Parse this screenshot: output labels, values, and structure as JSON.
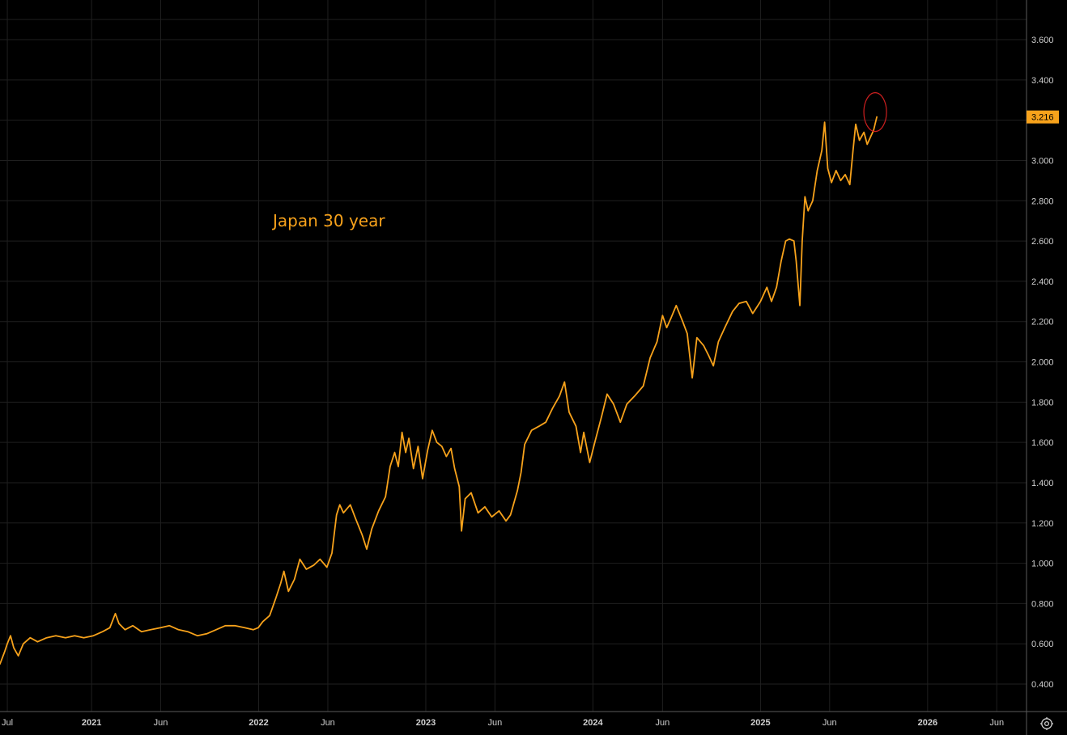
{
  "chart_data": {
    "type": "line",
    "title": "",
    "annotation": "Japan 30 year",
    "xlabel": "",
    "ylabel": "",
    "x_axis_labels": [
      "Jul",
      "2021",
      "Jun",
      "2022",
      "Jun",
      "2023",
      "Jun",
      "2024",
      "Jun",
      "2025",
      "Jun",
      "2026",
      "Jun"
    ],
    "y_ticks": [
      "0.400",
      "0.600",
      "0.800",
      "1.000",
      "1.200",
      "1.400",
      "1.600",
      "1.800",
      "2.000",
      "2.200",
      "2.400",
      "2.600",
      "2.800",
      "3.000",
      "3.200",
      "3.400",
      "3.600"
    ],
    "ylim": [
      0.3,
      3.7
    ],
    "xlim": [
      "2020-06-15",
      "2026-08-05"
    ],
    "grid": true,
    "last_value": "3.216",
    "series": [
      {
        "name": "",
        "color": "#f7a21b",
        "points": [
          [
            "2020-06-15",
            0.5
          ],
          [
            "2020-06-25",
            0.56
          ],
          [
            "2020-07-01",
            0.6
          ],
          [
            "2020-07-08",
            0.64
          ],
          [
            "2020-07-15",
            0.58
          ],
          [
            "2020-07-25",
            0.54
          ],
          [
            "2020-08-05",
            0.6
          ],
          [
            "2020-08-20",
            0.63
          ],
          [
            "2020-09-05",
            0.61
          ],
          [
            "2020-09-25",
            0.63
          ],
          [
            "2020-10-15",
            0.64
          ],
          [
            "2020-11-05",
            0.63
          ],
          [
            "2020-11-25",
            0.64
          ],
          [
            "2020-12-15",
            0.63
          ],
          [
            "2021-01-05",
            0.64
          ],
          [
            "2021-01-25",
            0.66
          ],
          [
            "2021-02-10",
            0.68
          ],
          [
            "2021-02-22",
            0.75
          ],
          [
            "2021-03-02",
            0.7
          ],
          [
            "2021-03-15",
            0.67
          ],
          [
            "2021-04-01",
            0.69
          ],
          [
            "2021-04-20",
            0.66
          ],
          [
            "2021-05-10",
            0.67
          ],
          [
            "2021-06-01",
            0.68
          ],
          [
            "2021-06-20",
            0.69
          ],
          [
            "2021-07-10",
            0.67
          ],
          [
            "2021-07-30",
            0.66
          ],
          [
            "2021-08-20",
            0.64
          ],
          [
            "2021-09-10",
            0.65
          ],
          [
            "2021-09-30",
            0.67
          ],
          [
            "2021-10-20",
            0.69
          ],
          [
            "2021-11-10",
            0.69
          ],
          [
            "2021-12-01",
            0.68
          ],
          [
            "2021-12-20",
            0.67
          ],
          [
            "2021-12-31",
            0.68
          ],
          [
            "2022-01-10",
            0.71
          ],
          [
            "2022-01-25",
            0.74
          ],
          [
            "2022-02-08",
            0.83
          ],
          [
            "2022-02-18",
            0.9
          ],
          [
            "2022-02-25",
            0.96
          ],
          [
            "2022-03-07",
            0.86
          ],
          [
            "2022-03-20",
            0.92
          ],
          [
            "2022-04-01",
            1.02
          ],
          [
            "2022-04-15",
            0.97
          ],
          [
            "2022-05-01",
            0.99
          ],
          [
            "2022-05-15",
            1.02
          ],
          [
            "2022-05-30",
            0.98
          ],
          [
            "2022-06-10",
            1.05
          ],
          [
            "2022-06-20",
            1.24
          ],
          [
            "2022-06-27",
            1.29
          ],
          [
            "2022-07-05",
            1.25
          ],
          [
            "2022-07-20",
            1.29
          ],
          [
            "2022-08-01",
            1.22
          ],
          [
            "2022-08-15",
            1.14
          ],
          [
            "2022-08-25",
            1.07
          ],
          [
            "2022-09-05",
            1.17
          ],
          [
            "2022-09-20",
            1.26
          ],
          [
            "2022-10-05",
            1.33
          ],
          [
            "2022-10-15",
            1.48
          ],
          [
            "2022-10-25",
            1.55
          ],
          [
            "2022-11-02",
            1.48
          ],
          [
            "2022-11-10",
            1.65
          ],
          [
            "2022-11-18",
            1.55
          ],
          [
            "2022-11-25",
            1.62
          ],
          [
            "2022-12-05",
            1.47
          ],
          [
            "2022-12-15",
            1.58
          ],
          [
            "2022-12-25",
            1.42
          ],
          [
            "2023-01-05",
            1.56
          ],
          [
            "2023-01-15",
            1.66
          ],
          [
            "2023-01-25",
            1.6
          ],
          [
            "2023-02-05",
            1.58
          ],
          [
            "2023-02-15",
            1.53
          ],
          [
            "2023-02-25",
            1.57
          ],
          [
            "2023-03-05",
            1.47
          ],
          [
            "2023-03-15",
            1.38
          ],
          [
            "2023-03-20",
            1.16
          ],
          [
            "2023-03-28",
            1.32
          ],
          [
            "2023-04-10",
            1.35
          ],
          [
            "2023-04-25",
            1.25
          ],
          [
            "2023-05-10",
            1.28
          ],
          [
            "2023-05-25",
            1.23
          ],
          [
            "2023-06-10",
            1.26
          ],
          [
            "2023-06-25",
            1.21
          ],
          [
            "2023-07-05",
            1.24
          ],
          [
            "2023-07-20",
            1.36
          ],
          [
            "2023-07-28",
            1.45
          ],
          [
            "2023-08-05",
            1.59
          ],
          [
            "2023-08-20",
            1.66
          ],
          [
            "2023-09-05",
            1.68
          ],
          [
            "2023-09-20",
            1.7
          ],
          [
            "2023-10-05",
            1.77
          ],
          [
            "2023-10-20",
            1.83
          ],
          [
            "2023-10-31",
            1.9
          ],
          [
            "2023-11-10",
            1.75
          ],
          [
            "2023-11-25",
            1.68
          ],
          [
            "2023-12-05",
            1.55
          ],
          [
            "2023-12-12",
            1.65
          ],
          [
            "2023-12-25",
            1.5
          ],
          [
            "2024-01-05",
            1.6
          ],
          [
            "2024-01-20",
            1.73
          ],
          [
            "2024-02-01",
            1.84
          ],
          [
            "2024-02-15",
            1.79
          ],
          [
            "2024-03-01",
            1.7
          ],
          [
            "2024-03-15",
            1.79
          ],
          [
            "2024-04-01",
            1.83
          ],
          [
            "2024-04-20",
            1.88
          ],
          [
            "2024-05-05",
            2.02
          ],
          [
            "2024-05-20",
            2.1
          ],
          [
            "2024-06-01",
            2.23
          ],
          [
            "2024-06-10",
            2.17
          ],
          [
            "2024-06-20",
            2.22
          ],
          [
            "2024-07-01",
            2.28
          ],
          [
            "2024-07-15",
            2.2
          ],
          [
            "2024-07-25",
            2.14
          ],
          [
            "2024-08-05",
            1.92
          ],
          [
            "2024-08-15",
            2.12
          ],
          [
            "2024-08-30",
            2.08
          ],
          [
            "2024-09-10",
            2.03
          ],
          [
            "2024-09-20",
            1.98
          ],
          [
            "2024-10-01",
            2.1
          ],
          [
            "2024-10-15",
            2.17
          ],
          [
            "2024-11-01",
            2.25
          ],
          [
            "2024-11-15",
            2.29
          ],
          [
            "2024-12-01",
            2.3
          ],
          [
            "2024-12-15",
            2.24
          ],
          [
            "2025-01-01",
            2.3
          ],
          [
            "2025-01-15",
            2.37
          ],
          [
            "2025-01-25",
            2.3
          ],
          [
            "2025-02-05",
            2.37
          ],
          [
            "2025-02-15",
            2.5
          ],
          [
            "2025-02-25",
            2.6
          ],
          [
            "2025-03-05",
            2.61
          ],
          [
            "2025-03-15",
            2.6
          ],
          [
            "2025-03-20",
            2.5
          ],
          [
            "2025-03-28",
            2.28
          ],
          [
            "2025-04-02",
            2.6
          ],
          [
            "2025-04-08",
            2.82
          ],
          [
            "2025-04-15",
            2.75
          ],
          [
            "2025-04-25",
            2.8
          ],
          [
            "2025-05-05",
            2.95
          ],
          [
            "2025-05-15",
            3.05
          ],
          [
            "2025-05-21",
            3.19
          ],
          [
            "2025-05-28",
            2.96
          ],
          [
            "2025-06-05",
            2.89
          ],
          [
            "2025-06-15",
            2.95
          ],
          [
            "2025-06-25",
            2.9
          ],
          [
            "2025-07-05",
            2.93
          ],
          [
            "2025-07-15",
            2.88
          ],
          [
            "2025-07-22",
            3.05
          ],
          [
            "2025-07-28",
            3.18
          ],
          [
            "2025-08-05",
            3.1
          ],
          [
            "2025-08-15",
            3.14
          ],
          [
            "2025-08-22",
            3.08
          ],
          [
            "2025-08-30",
            3.12
          ],
          [
            "2025-09-05",
            3.15
          ],
          [
            "2025-09-12",
            3.216
          ]
        ]
      }
    ],
    "colors": {
      "background": "#000000",
      "grid": "#1f1f1f",
      "axis_text": "#d0d0d0",
      "line": "#f7a21b",
      "annotation_text": "#f7a21b",
      "highlight_circle": "#cc1f1f",
      "badge": "#f7a21b"
    }
  },
  "toolbar": {
    "settings_icon": "settings-gear-icon"
  }
}
